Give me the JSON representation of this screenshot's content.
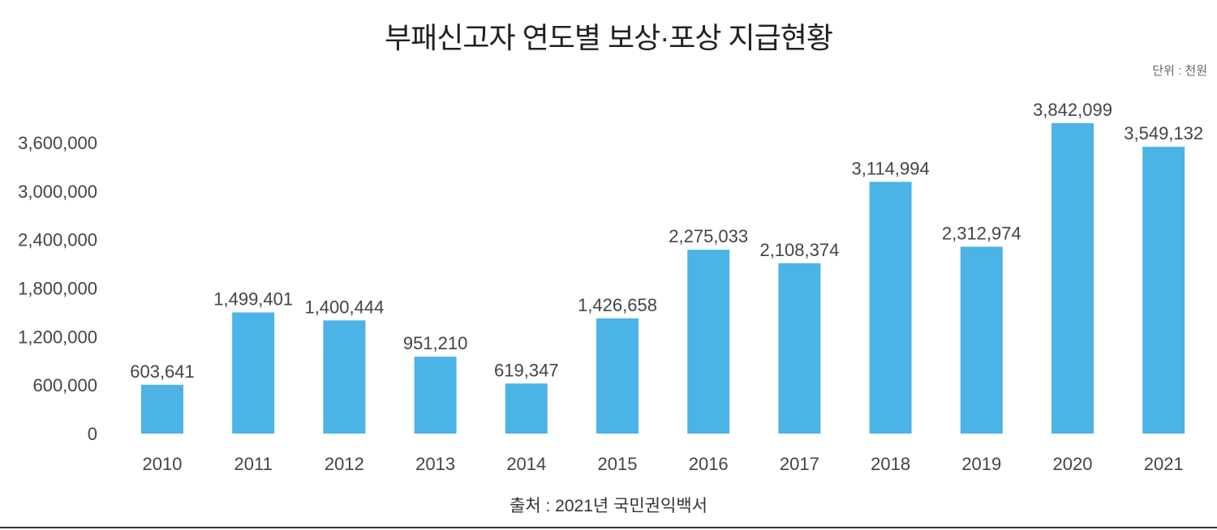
{
  "unit_label": "단위 : 천원",
  "source": "출처 : 2021년 국민권익백서",
  "colors": {
    "bar": "#4bb3e5",
    "text": "#444444",
    "background": "#ffffff"
  },
  "chart_data": {
    "type": "bar",
    "title": "부패신고자 연도별 보상·포상 지급현황",
    "xlabel": "",
    "ylabel": "",
    "categories": [
      "2010",
      "2011",
      "2012",
      "2013",
      "2014",
      "2015",
      "2016",
      "2017",
      "2018",
      "2019",
      "2020",
      "2021"
    ],
    "values": [
      603641,
      1499401,
      1400444,
      951210,
      619347,
      1426658,
      2275033,
      2108374,
      3114994,
      2312974,
      3842099,
      3549132
    ],
    "value_labels": [
      "603,641",
      "1,499,401",
      "1,400,444",
      "951,210",
      "619,347",
      "1,426,658",
      "2,275,033",
      "2,108,374",
      "3,114,994",
      "2,312,974",
      "3,842,099",
      "3,549,132"
    ],
    "yticks": [
      0,
      600000,
      1200000,
      1800000,
      2400000,
      3000000,
      3600000
    ],
    "ytick_labels": [
      "0",
      "600,000",
      "1,200,000",
      "1,800,000",
      "2,400,000",
      "3,000,000",
      "3,600,000"
    ],
    "ylim": [
      0,
      3840000
    ],
    "grid": false,
    "legend": "none"
  }
}
